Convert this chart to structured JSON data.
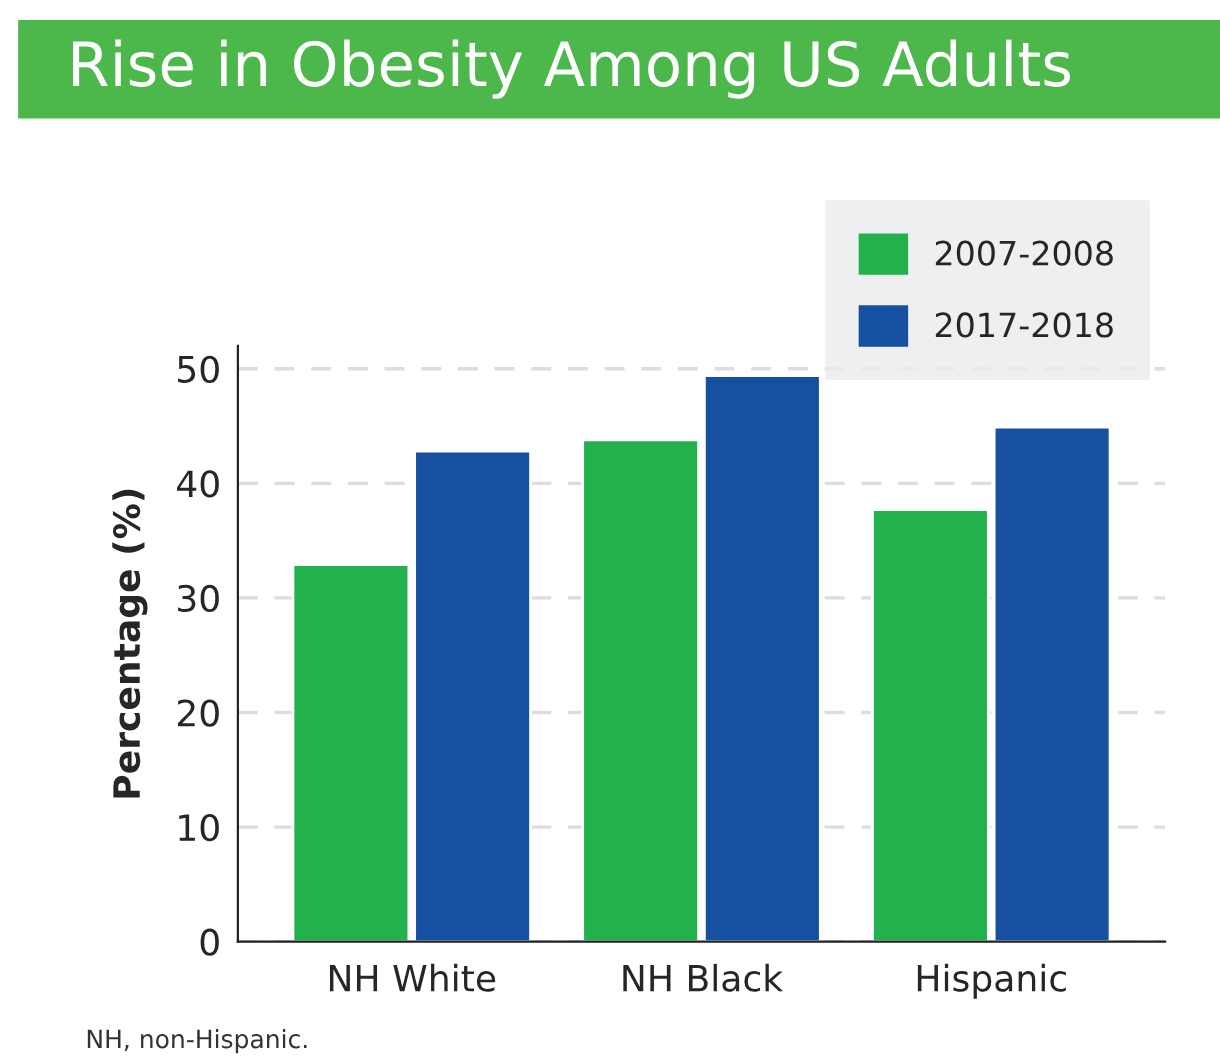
{
  "chart_data": {
    "type": "bar",
    "title": "Rise in Obesity Among US Adults",
    "ylabel": "Percentage (%)",
    "categories": [
      "NH White",
      "NH Black",
      "Hispanic"
    ],
    "series": [
      {
        "name": "2007-2008",
        "color": "#22b14c",
        "values": [
          32.9,
          43.8,
          37.7
        ]
      },
      {
        "name": "2017-2018",
        "color": "#1650a0",
        "values": [
          42.8,
          49.4,
          44.9
        ]
      }
    ],
    "ylim": [
      0,
      52
    ],
    "yticks": [
      0,
      10,
      20,
      30,
      40,
      50
    ],
    "grid": "y",
    "legend": "top right",
    "annotations": [
      "NH, non-Hispanic."
    ]
  }
}
